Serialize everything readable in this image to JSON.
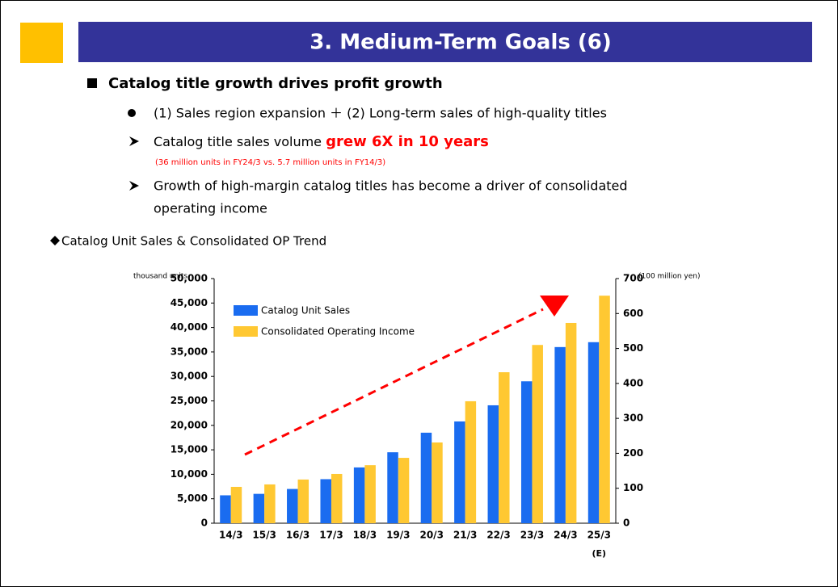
{
  "slide": {
    "title": "3. Medium-Term Goals (6)",
    "heading": "Catalog title growth drives profit growth",
    "point": "(1) Sales region expansion ＋ (2) Long-term sales of high-quality titles",
    "volume_lead": "Catalog title sales volume ",
    "volume_emphasis": "grew 6X in 10 years",
    "volume_note": "(36 million units in FY24/3 vs. 5.7 million units in FY14/3)",
    "driver_line1": "Growth of high-margin catalog titles has become a driver of consolidated",
    "driver_line2": "operating income",
    "chart_caption": "Catalog Unit Sales & Consolidated OP Trend"
  },
  "chart_data": {
    "type": "bar",
    "categories": [
      "14/3",
      "15/3",
      "16/3",
      "17/3",
      "18/3",
      "19/3",
      "20/3",
      "21/3",
      "22/3",
      "23/3",
      "24/3",
      "25/3"
    ],
    "category_note": "(E)",
    "y_label": "thousand units",
    "y2_label": "(100 million yen)",
    "series": [
      {
        "name": "Catalog Unit Sales",
        "color": "#1a6cf0",
        "values": [
          5700,
          6000,
          7000,
          9000,
          11400,
          14500,
          18500,
          20800,
          24100,
          29000,
          36000,
          37000
        ]
      },
      {
        "name": "Consolidated Operating Income",
        "color": "#ffc832",
        "axis": "y2",
        "values": [
          104,
          111,
          125,
          141,
          166,
          187,
          231,
          349,
          432,
          510,
          573,
          651
        ]
      }
    ],
    "ylim": [
      0,
      50000
    ],
    "yticks": [
      0,
      {
        "value": 5000,
        "label": "5,000"
      },
      {
        "value": 10000,
        "label": "10,000"
      },
      {
        "value": 15000,
        "label": "15,000"
      },
      {
        "value": 20000,
        "label": "20,000"
      },
      {
        "value": 25000,
        "label": "25,000"
      },
      {
        "value": 30000,
        "label": "30,000"
      },
      {
        "value": 35000,
        "label": "35,000"
      },
      {
        "value": 40000,
        "label": "40,000"
      },
      {
        "value": 45000,
        "label": "45,000"
      },
      {
        "value": 50000,
        "label": "50,000"
      }
    ],
    "y2lim": [
      0,
      700
    ],
    "y2ticks": [
      0,
      100,
      200,
      300,
      400,
      500,
      600,
      700
    ],
    "legend": "upper left",
    "grid": false
  }
}
